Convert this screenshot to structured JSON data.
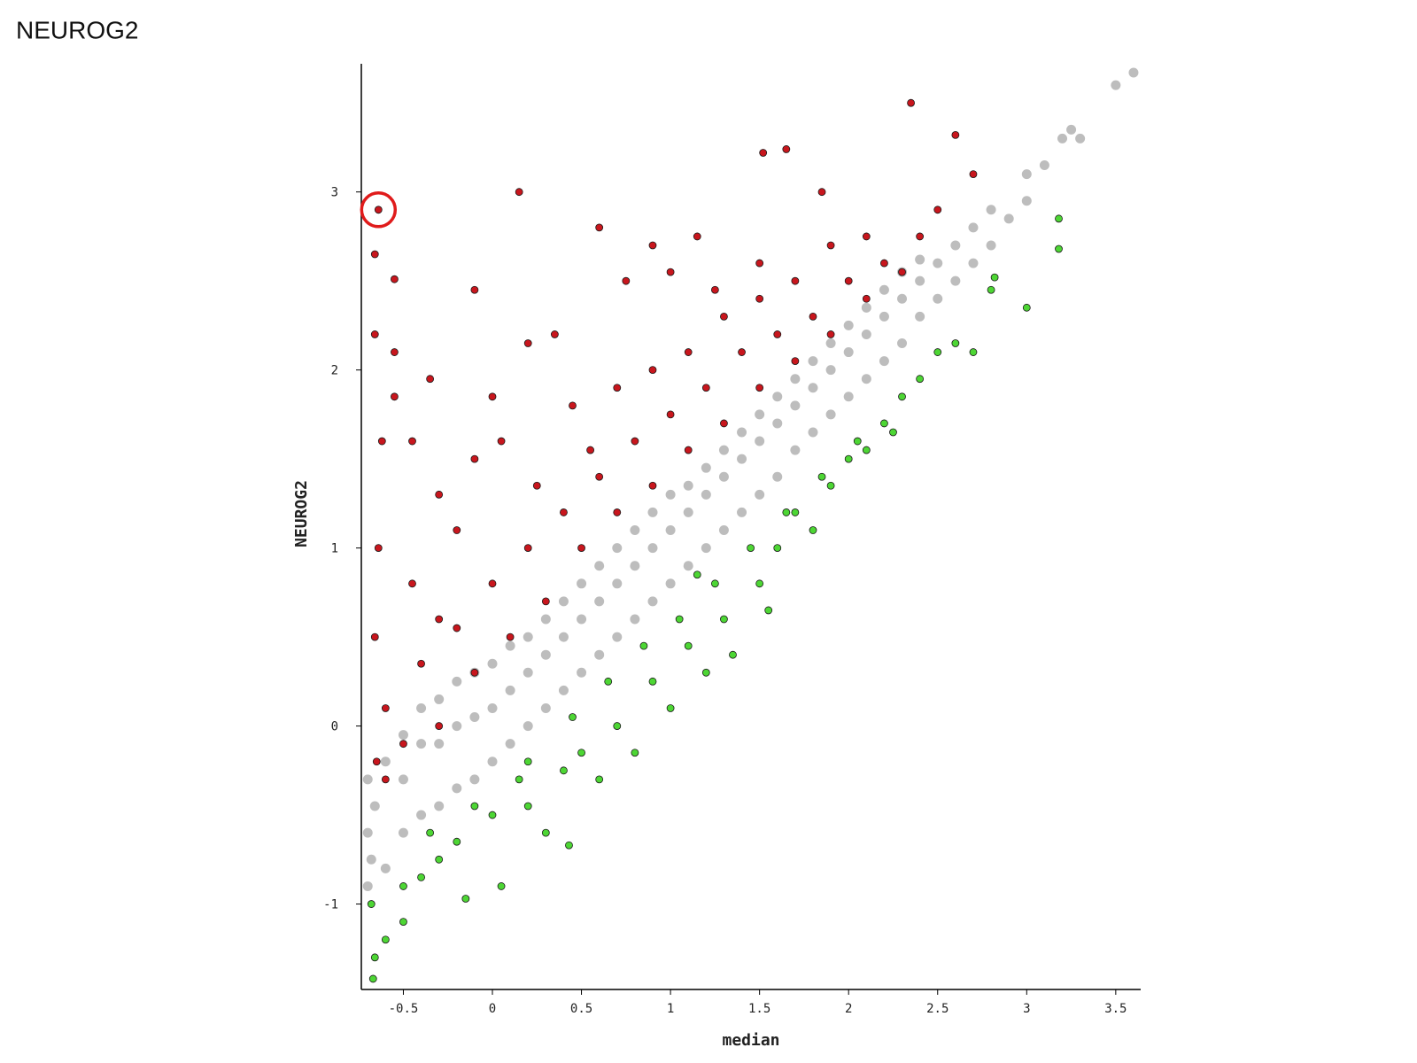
{
  "chart_data": {
    "type": "scatter",
    "title": "NEUROG2",
    "y_label": "NEUROG2",
    "x_label": "median",
    "xlim": [
      -0.736,
      3.64
    ],
    "ylim": [
      -1.48,
      3.72
    ],
    "xticks": [
      -0.5,
      0,
      0.5,
      1,
      1.5,
      2,
      2.5,
      3,
      3.5
    ],
    "yticks": [
      -1,
      0,
      1,
      2,
      3
    ],
    "grid": false,
    "highlight_color": "#e01b1b",
    "series": [
      {
        "color": "#bdbdbd",
        "x": [
          -0.7,
          -0.7,
          -0.7,
          -0.68,
          -0.66,
          -0.6,
          -0.6,
          -0.5,
          -0.5,
          -0.5,
          -0.4,
          -0.4,
          -0.4,
          -0.3,
          -0.3,
          -0.3,
          -0.2,
          -0.2,
          -0.2,
          -0.1,
          -0.1,
          -0.1,
          0,
          0,
          0,
          0.1,
          0.1,
          0.1,
          0.2,
          0.2,
          0.2,
          0.3,
          0.3,
          0.3,
          0.4,
          0.4,
          0.4,
          0.5,
          0.5,
          0.5,
          0.6,
          0.6,
          0.6,
          0.7,
          0.7,
          0.7,
          0.8,
          0.8,
          0.8,
          0.9,
          0.9,
          0.9,
          1.0,
          1.0,
          1.0,
          1.1,
          1.1,
          1.1,
          1.2,
          1.2,
          1.2,
          1.3,
          1.3,
          1.3,
          1.4,
          1.4,
          1.4,
          1.5,
          1.5,
          1.5,
          1.6,
          1.6,
          1.6,
          1.7,
          1.7,
          1.7,
          1.8,
          1.8,
          1.8,
          1.9,
          1.9,
          1.9,
          2.0,
          2.0,
          2.0,
          2.1,
          2.1,
          2.1,
          2.2,
          2.2,
          2.2,
          2.3,
          2.3,
          2.3,
          2.4,
          2.4,
          2.4,
          2.5,
          2.5,
          2.6,
          2.6,
          2.7,
          2.7,
          2.8,
          2.8,
          2.9,
          3.0,
          3.0,
          3.1,
          3.2,
          3.25,
          3.3,
          3.5,
          3.6
        ],
        "values": [
          -0.9,
          -0.6,
          -0.3,
          -0.75,
          -0.45,
          -0.2,
          -0.8,
          -0.6,
          -0.3,
          -0.05,
          -0.5,
          -0.1,
          0.1,
          -0.45,
          -0.1,
          0.15,
          -0.35,
          0.0,
          0.25,
          -0.3,
          0.05,
          0.3,
          -0.2,
          0.1,
          0.35,
          -0.1,
          0.2,
          0.45,
          0.0,
          0.3,
          0.5,
          0.1,
          0.4,
          0.6,
          0.2,
          0.5,
          0.7,
          0.3,
          0.6,
          0.8,
          0.4,
          0.7,
          0.9,
          0.5,
          0.8,
          1.0,
          0.6,
          0.9,
          1.1,
          0.7,
          1.0,
          1.2,
          0.8,
          1.1,
          1.3,
          0.9,
          1.2,
          1.35,
          1.0,
          1.3,
          1.45,
          1.1,
          1.4,
          1.55,
          1.2,
          1.5,
          1.65,
          1.3,
          1.6,
          1.75,
          1.4,
          1.7,
          1.85,
          1.55,
          1.8,
          1.95,
          1.65,
          1.9,
          2.05,
          1.75,
          2.0,
          2.15,
          1.85,
          2.1,
          2.25,
          1.95,
          2.2,
          2.35,
          2.05,
          2.3,
          2.45,
          2.15,
          2.4,
          2.55,
          2.3,
          2.5,
          2.62,
          2.4,
          2.6,
          2.5,
          2.7,
          2.6,
          2.8,
          2.7,
          2.9,
          2.85,
          2.95,
          3.1,
          3.15,
          3.3,
          3.35,
          3.3,
          3.6,
          3.67
        ]
      },
      {
        "color": "#c8161d",
        "x": [
          -0.64,
          -0.66,
          -0.55,
          -0.1,
          0.15,
          0.6,
          0.75,
          0.9,
          1.0,
          1.15,
          1.25,
          1.5,
          1.52,
          1.65,
          1.85,
          2.35,
          2.6,
          2.7,
          2.5,
          2.4,
          2.2,
          2.0,
          1.8,
          1.6,
          1.4,
          1.2,
          1.0,
          0.8,
          0.6,
          0.4,
          0.2,
          0.0,
          -0.2,
          -0.4,
          -0.6,
          -0.65,
          -0.6,
          -0.66,
          -0.64,
          -0.62,
          -0.66,
          -0.55,
          -0.55,
          -0.45,
          -0.3,
          -0.2,
          -0.1,
          0.0,
          0.2,
          0.35,
          0.45,
          0.55,
          0.7,
          0.9,
          1.1,
          1.3,
          1.5,
          1.7,
          1.9,
          2.1,
          0.3,
          0.1,
          -0.1,
          -0.3,
          -0.5,
          -0.45,
          -0.3,
          0.5,
          0.7,
          0.9,
          1.1,
          1.3,
          1.5,
          1.7,
          1.9,
          2.1,
          2.3,
          -0.35,
          0.05,
          0.25
        ],
        "values": [
          2.9,
          2.65,
          2.51,
          2.45,
          3.0,
          2.8,
          2.5,
          2.7,
          2.55,
          2.75,
          2.45,
          2.6,
          3.22,
          3.24,
          3.0,
          3.5,
          3.32,
          3.1,
          2.9,
          2.75,
          2.6,
          2.5,
          2.3,
          2.2,
          2.1,
          1.9,
          1.75,
          1.6,
          1.4,
          1.2,
          1.0,
          0.8,
          0.55,
          0.35,
          0.1,
          -0.2,
          -0.3,
          0.5,
          1.0,
          1.6,
          2.2,
          2.1,
          1.85,
          1.6,
          1.3,
          1.1,
          1.5,
          1.85,
          2.15,
          2.2,
          1.8,
          1.55,
          1.9,
          2.0,
          2.1,
          2.3,
          2.4,
          2.5,
          2.7,
          2.75,
          0.7,
          0.5,
          0.3,
          0.0,
          -0.1,
          0.8,
          0.6,
          1.0,
          1.2,
          1.35,
          1.55,
          1.7,
          1.9,
          2.05,
          2.2,
          2.4,
          2.55,
          1.95,
          1.6,
          1.35
        ]
      },
      {
        "color": "#4dd634",
        "x": [
          -0.68,
          -0.66,
          -0.67,
          -0.6,
          -0.5,
          -0.5,
          -0.4,
          -0.3,
          -0.2,
          -0.15,
          0.0,
          0.05,
          0.2,
          0.3,
          0.4,
          0.43,
          0.5,
          0.6,
          0.7,
          0.8,
          0.9,
          1.0,
          1.1,
          1.2,
          1.3,
          1.35,
          1.5,
          1.55,
          1.6,
          1.7,
          1.8,
          1.9,
          2.0,
          2.1,
          2.2,
          2.3,
          2.4,
          2.5,
          2.6,
          2.7,
          2.82,
          2.8,
          3.0,
          3.18,
          3.18,
          0.2,
          0.45,
          0.65,
          0.85,
          1.05,
          1.25,
          1.45,
          1.65,
          1.85,
          2.05,
          2.25,
          -0.1,
          -0.35,
          0.15,
          1.15
        ],
        "values": [
          -1.0,
          -1.3,
          -1.42,
          -1.2,
          -1.1,
          -0.9,
          -0.85,
          -0.75,
          -0.65,
          -0.97,
          -0.5,
          -0.9,
          -0.45,
          -0.6,
          -0.25,
          -0.67,
          -0.15,
          -0.3,
          0.0,
          -0.15,
          0.25,
          0.1,
          0.45,
          0.3,
          0.6,
          0.4,
          0.8,
          0.65,
          1.0,
          1.2,
          1.1,
          1.35,
          1.5,
          1.55,
          1.7,
          1.85,
          1.95,
          2.1,
          2.15,
          2.1,
          2.52,
          2.45,
          2.35,
          2.85,
          2.68,
          -0.2,
          0.05,
          0.25,
          0.45,
          0.6,
          0.8,
          1.0,
          1.2,
          1.4,
          1.6,
          1.65,
          -0.45,
          -0.6,
          -0.3,
          0.85
        ]
      }
    ]
  }
}
